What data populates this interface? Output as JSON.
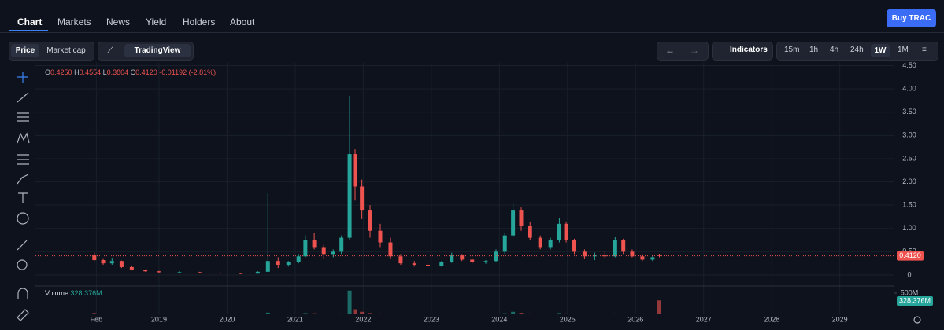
{
  "nav": {
    "tabs": [
      "Chart",
      "Markets",
      "News",
      "Yield",
      "Holders",
      "About"
    ],
    "button": "Buy TRAC"
  },
  "toolbar": {
    "toggle": [
      "Price",
      "Market cap"
    ],
    "chart_style": "TradingView",
    "indicators": "Indicators",
    "timeframes": [
      "15m",
      "1h",
      "4h",
      "24h",
      "1W",
      "1M"
    ]
  },
  "chart_data": {
    "type": "candlestick",
    "legend": {
      "o_label": "O",
      "open": "0.4250",
      "h_label": "H",
      "high": "0.4554",
      "l_label": "L",
      "low": "0.3804",
      "c_label": "C",
      "close": "0.4120",
      "change": "-0.01192 (-2.81%)"
    },
    "x": [
      2018.05,
      2018.18,
      2018.31,
      2018.45,
      2018.6,
      2018.8,
      2019.0,
      2019.3,
      2019.6,
      2019.9,
      2020.2,
      2020.45,
      2020.6,
      2020.75,
      2020.9,
      2021.05,
      2021.15,
      2021.28,
      2021.42,
      2021.56,
      2021.68,
      2021.8,
      2021.88,
      2021.98,
      2022.1,
      2022.25,
      2022.4,
      2022.55,
      2022.75,
      2022.95,
      2023.15,
      2023.3,
      2023.45,
      2023.6,
      2023.8,
      2023.95,
      2024.08,
      2024.2,
      2024.32,
      2024.45,
      2024.6,
      2024.75,
      2024.88,
      2024.98,
      2025.1,
      2025.25,
      2025.4,
      2025.55,
      2025.7,
      2025.82,
      2025.95,
      2026.1,
      2026.25,
      2026.35
    ],
    "open": [
      0.42,
      0.32,
      0.25,
      0.3,
      0.17,
      0.11,
      0.08,
      0.06,
      0.06,
      0.05,
      0.04,
      0.03,
      0.07,
      0.3,
      0.22,
      0.28,
      0.4,
      0.75,
      0.6,
      0.45,
      0.5,
      0.8,
      2.6,
      1.9,
      1.4,
      0.95,
      0.7,
      0.4,
      0.25,
      0.22,
      0.2,
      0.28,
      0.42,
      0.33,
      0.28,
      0.3,
      0.5,
      0.85,
      1.4,
      1.05,
      0.8,
      0.6,
      0.75,
      1.1,
      0.75,
      0.5,
      0.4,
      0.42,
      0.4,
      0.75,
      0.5,
      0.4,
      0.33,
      0.425
    ],
    "high": [
      0.48,
      0.36,
      0.37,
      0.31,
      0.19,
      0.12,
      0.09,
      0.08,
      0.07,
      0.06,
      0.05,
      0.08,
      1.75,
      0.38,
      0.3,
      0.45,
      0.85,
      0.9,
      0.65,
      0.55,
      0.85,
      3.85,
      2.7,
      2.05,
      1.5,
      1.1,
      0.8,
      0.45,
      0.3,
      0.26,
      0.3,
      0.48,
      0.45,
      0.36,
      0.32,
      0.55,
      0.9,
      1.55,
      1.45,
      1.15,
      0.85,
      0.8,
      1.22,
      1.15,
      0.78,
      0.55,
      0.48,
      0.5,
      0.82,
      0.78,
      0.55,
      0.45,
      0.42,
      0.4554
    ],
    "low": [
      0.3,
      0.22,
      0.22,
      0.15,
      0.1,
      0.07,
      0.05,
      0.05,
      0.04,
      0.03,
      0.02,
      0.03,
      0.06,
      0.15,
      0.18,
      0.25,
      0.38,
      0.55,
      0.35,
      0.38,
      0.45,
      0.75,
      1.6,
      1.2,
      0.8,
      0.6,
      0.35,
      0.22,
      0.18,
      0.17,
      0.18,
      0.26,
      0.3,
      0.25,
      0.24,
      0.28,
      0.45,
      0.8,
      0.95,
      0.75,
      0.55,
      0.55,
      0.7,
      0.7,
      0.45,
      0.35,
      0.32,
      0.36,
      0.38,
      0.45,
      0.38,
      0.3,
      0.3,
      0.3804
    ],
    "close": [
      0.32,
      0.25,
      0.3,
      0.17,
      0.11,
      0.08,
      0.06,
      0.06,
      0.05,
      0.04,
      0.03,
      0.07,
      0.3,
      0.22,
      0.28,
      0.4,
      0.75,
      0.6,
      0.45,
      0.5,
      0.8,
      2.6,
      1.9,
      1.4,
      0.95,
      0.7,
      0.4,
      0.25,
      0.22,
      0.2,
      0.28,
      0.42,
      0.33,
      0.28,
      0.3,
      0.5,
      0.85,
      1.4,
      1.05,
      0.8,
      0.6,
      0.75,
      1.1,
      0.75,
      0.5,
      0.4,
      0.42,
      0.4,
      0.75,
      0.5,
      0.4,
      0.33,
      0.38,
      0.412
    ],
    "up_color": "#26a69a",
    "down_color": "#ef5350",
    "xlim": [
      2017.185,
      2029.79
    ],
    "xticks": [
      {
        "value": 2018.08,
        "label": "Feb"
      },
      2019,
      2020,
      2021,
      2022,
      2023,
      2024,
      2025,
      2026,
      2027,
      2028,
      2029
    ],
    "ylim": [
      -0.22,
      4.56
    ],
    "yticks": [
      0,
      {
        "value": 0.5,
        "label": "0.50"
      },
      {
        "value": 1,
        "label": "1.00"
      },
      {
        "value": 1.5,
        "label": "1.50"
      },
      {
        "value": 2,
        "label": "2.00"
      },
      {
        "value": 2.5,
        "label": "2.50"
      },
      {
        "value": 3,
        "label": "3.00"
      },
      {
        "value": 3.5,
        "label": "3.50"
      },
      {
        "value": 4,
        "label": "4.00"
      },
      {
        "value": 4.5,
        "label": "4.50"
      }
    ],
    "grid": true,
    "last_price": 0.412,
    "last_price_label": "0.4120",
    "volume": {
      "title": "Volume",
      "last_label": "328.376M",
      "values": [
        30,
        15,
        14,
        10,
        6,
        4,
        3,
        3,
        3,
        3,
        3,
        6,
        40,
        15,
        10,
        12,
        30,
        25,
        15,
        12,
        20,
        560,
        120,
        60,
        30,
        20,
        15,
        8,
        6,
        5,
        6,
        12,
        8,
        6,
        5,
        10,
        25,
        60,
        35,
        20,
        12,
        10,
        30,
        20,
        12,
        8,
        6,
        6,
        20,
        12,
        8,
        6,
        8,
        328.376
      ],
      "ylim": [
        0,
        648
      ],
      "yticks": [
        {
          "value": 500,
          "label": "500M"
        }
      ]
    }
  }
}
